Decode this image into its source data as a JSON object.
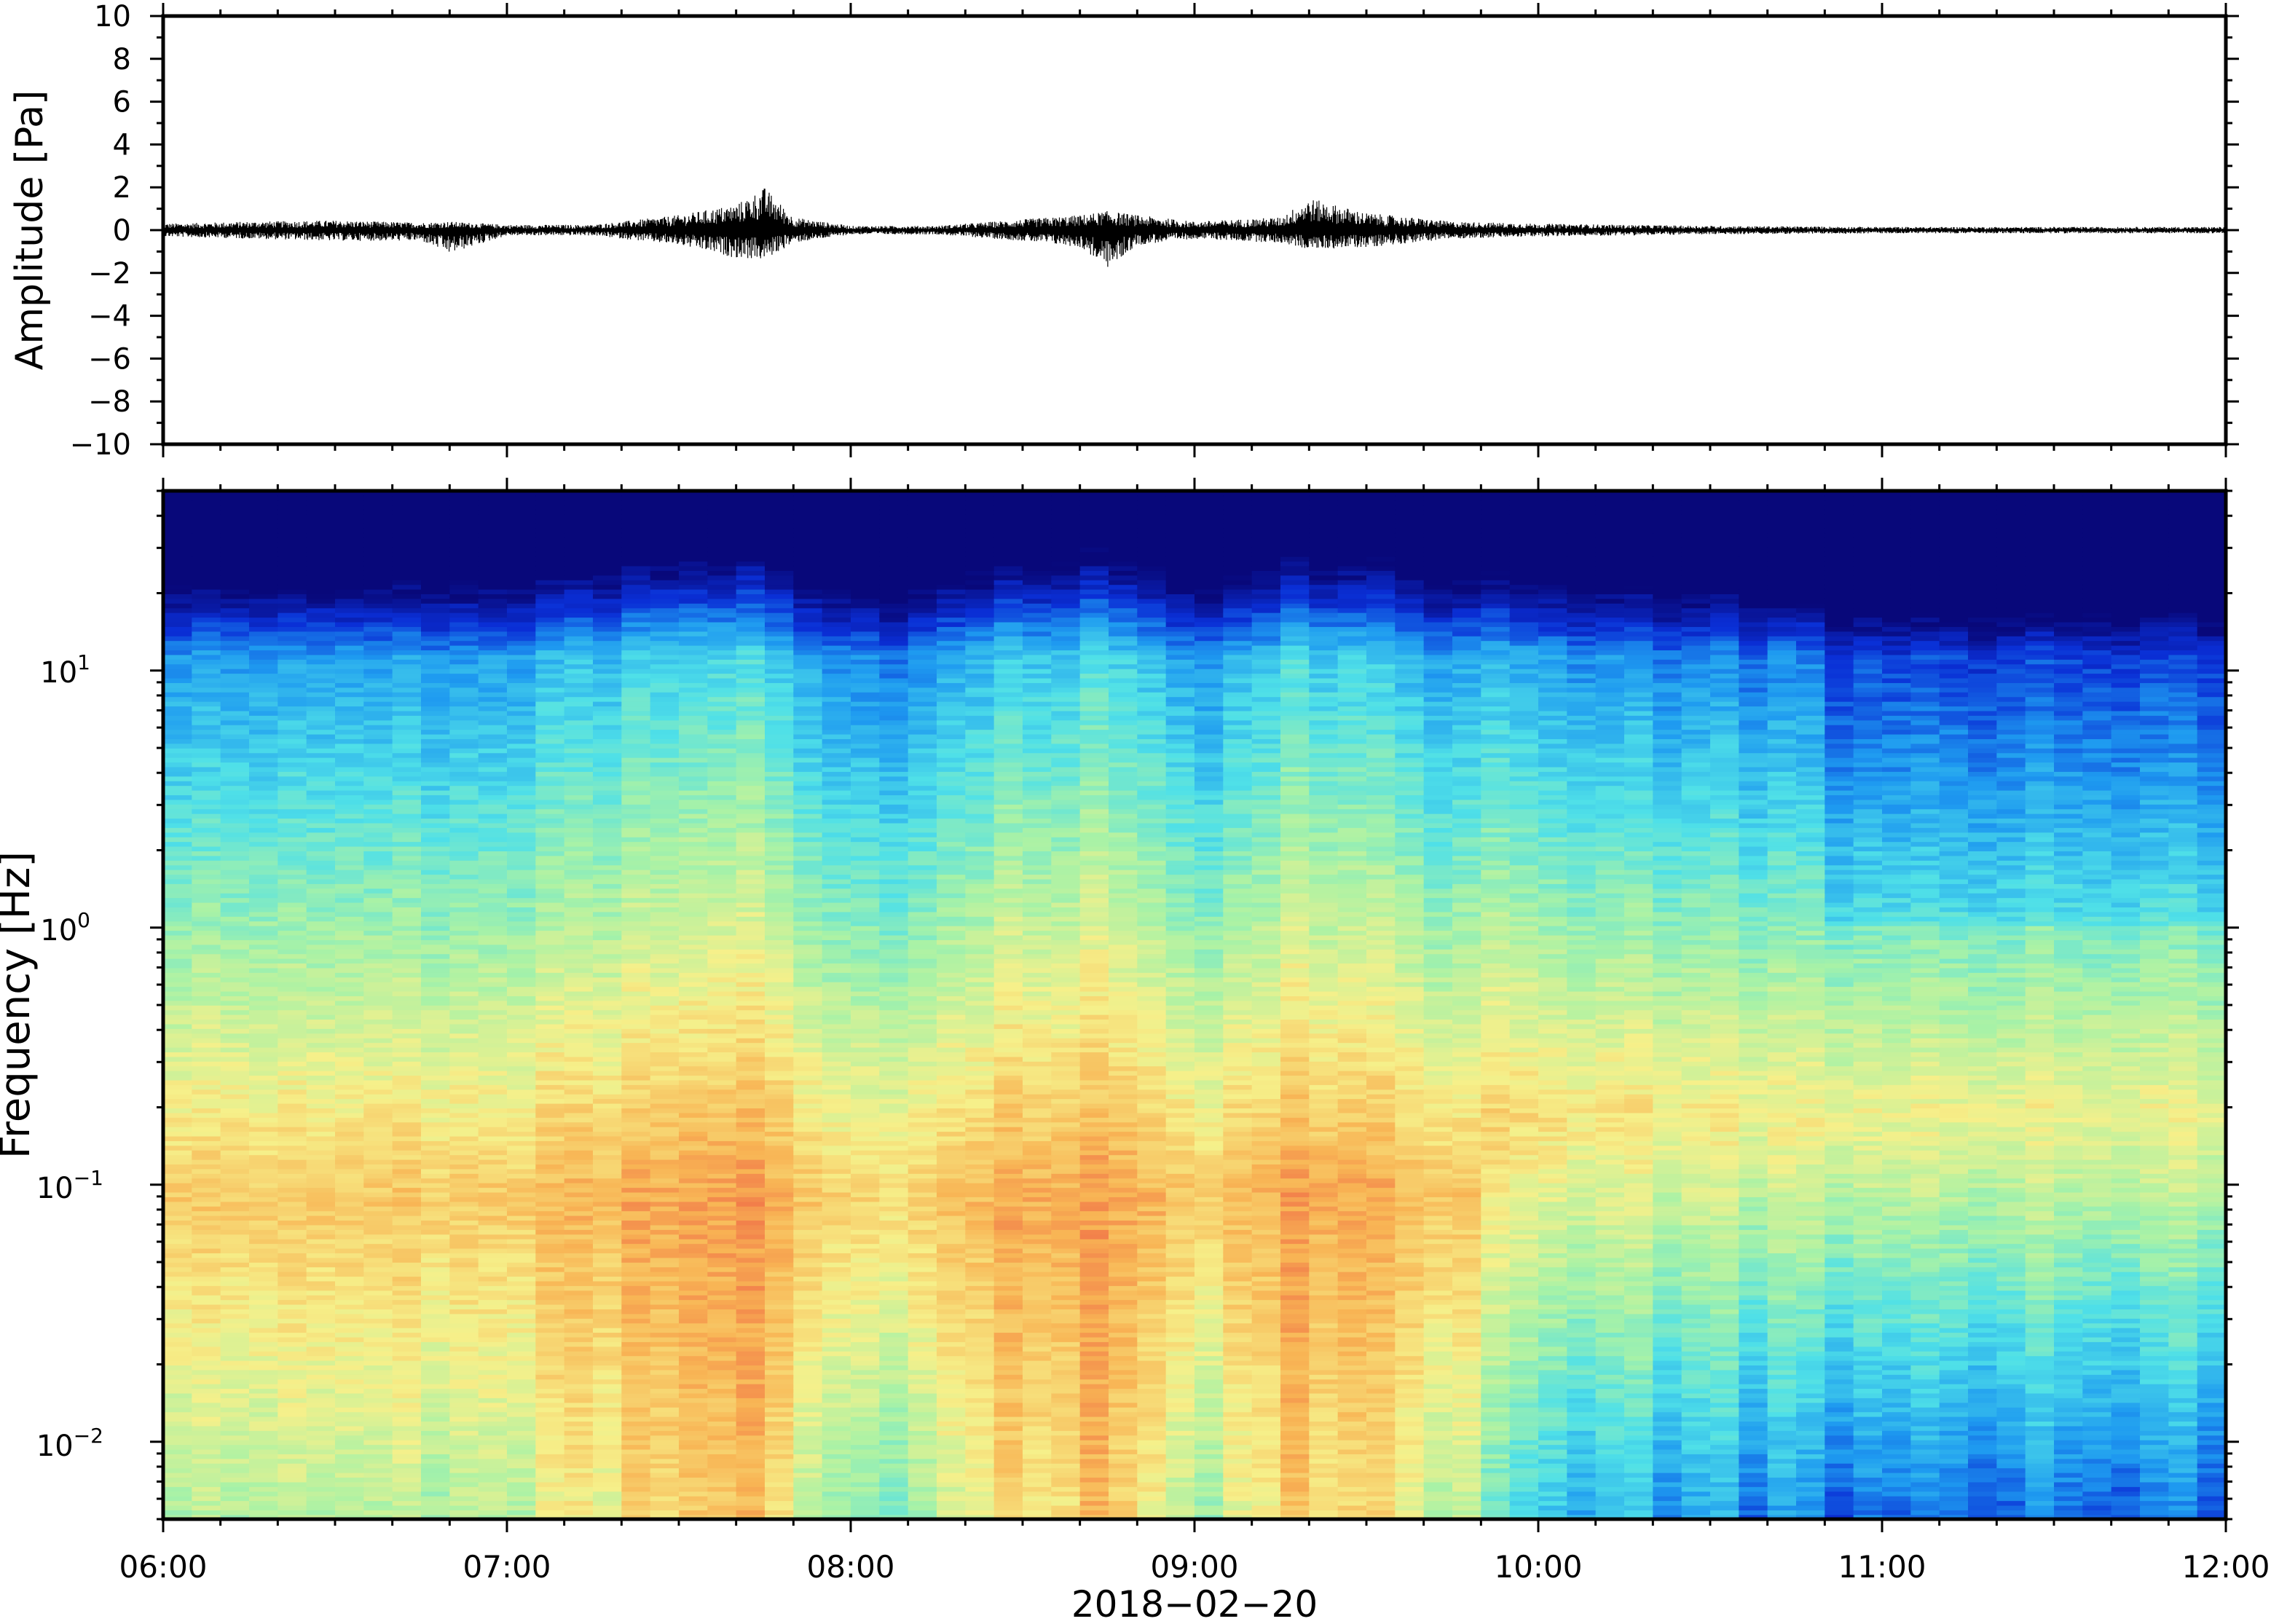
{
  "chart_data": [
    {
      "type": "line",
      "title": "",
      "xlabel": "",
      "ylabel": "Amplitude [Pa]",
      "xlim": [
        "06:00",
        "12:00"
      ],
      "ylim": [
        -10,
        10
      ],
      "yticks": [
        10,
        8,
        6,
        4,
        2,
        0,
        -2,
        -4,
        -6,
        -8,
        -10
      ],
      "ytick_labels": [
        "10",
        "8",
        "6",
        "4",
        "2",
        "0",
        "−2",
        "−4",
        "−6",
        "−8",
        "−10"
      ],
      "series": [
        {
          "description_of_data": "infrasound pressure trace",
          "x": [
            "06:00",
            "06:15",
            "06:30",
            "06:45",
            "06:50",
            "07:00",
            "07:15",
            "07:30",
            "07:40",
            "07:45",
            "07:50",
            "08:00",
            "08:15",
            "08:30",
            "08:40",
            "08:45",
            "08:50",
            "09:00",
            "09:15",
            "09:20",
            "09:30",
            "09:45",
            "10:00",
            "10:30",
            "11:00",
            "11:30",
            "12:00"
          ],
          "envelope_max": [
            0.3,
            0.4,
            0.45,
            0.35,
            0.4,
            0.25,
            0.25,
            0.7,
            1.2,
            2.0,
            0.6,
            0.2,
            0.2,
            0.5,
            0.7,
            0.9,
            0.7,
            0.4,
            0.6,
            1.5,
            0.8,
            0.4,
            0.3,
            0.2,
            0.15,
            0.15,
            0.15
          ],
          "envelope_min": [
            -0.3,
            -0.4,
            -0.5,
            -0.5,
            -1.1,
            -0.25,
            -0.25,
            -0.7,
            -1.3,
            -1.4,
            -0.6,
            -0.2,
            -0.2,
            -0.5,
            -0.8,
            -1.8,
            -0.7,
            -0.4,
            -0.6,
            -0.9,
            -0.8,
            -0.4,
            -0.3,
            -0.2,
            -0.15,
            -0.15,
            -0.15
          ]
        }
      ]
    },
    {
      "type": "heatmap",
      "title": "",
      "xlabel": "2018−02−20",
      "ylabel": "Frequency [Hz]",
      "xlim": [
        "06:00",
        "12:00"
      ],
      "ylim": [
        0.005,
        50
      ],
      "y_scale": "log",
      "xtick_labels": [
        "06:00",
        "07:00",
        "08:00",
        "09:00",
        "10:00",
        "11:00",
        "12:00"
      ],
      "yticks": [
        10,
        1,
        0.1,
        0.01
      ],
      "ytick_labels": [
        {
          "base": "10",
          "exp": "1"
        },
        {
          "base": "10",
          "exp": "0"
        },
        {
          "base": "10",
          "exp": "−1"
        },
        {
          "base": "10",
          "exp": "−2"
        }
      ],
      "colormap": "jet",
      "colormap_stops": [
        "#08087a",
        "#0a2fd6",
        "#1e9af0",
        "#4fe0e8",
        "#a9f2a6",
        "#f6f08a",
        "#f8b454",
        "#ee5a44"
      ],
      "time_bins_hours_after_0600": [
        0,
        0.5,
        1,
        1.5,
        1.75,
        2,
        2.5,
        2.75,
        3,
        3.25,
        3.5,
        4,
        4.5,
        5,
        5.5,
        6
      ],
      "activity_level": [
        0.7,
        0.75,
        0.75,
        0.95,
        1.0,
        0.6,
        0.9,
        1.0,
        0.65,
        0.95,
        0.9,
        0.6,
        0.5,
        0.4,
        0.45,
        0.4
      ],
      "microbarom_peak_hz": 0.15,
      "high_freq_rolloff_hz": 20
    }
  ]
}
